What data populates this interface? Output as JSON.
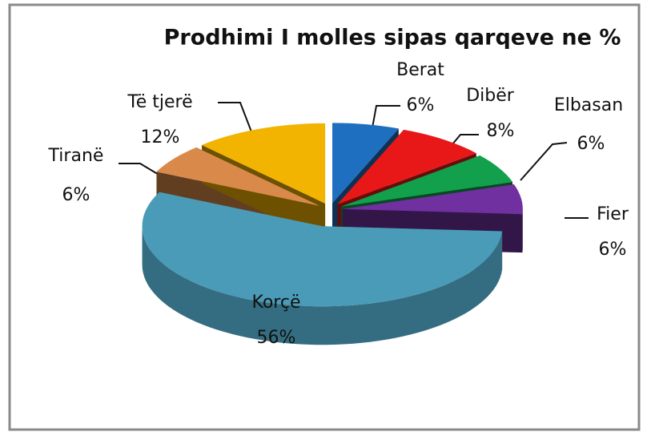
{
  "chart_data": {
    "type": "pie",
    "title": "Prodhimi I molles sipas qarqeve ne %",
    "categories": [
      "Berat",
      "Dibër",
      "Elbasan",
      "Fier",
      "Korçë",
      "Tiranë",
      "Të tjerë"
    ],
    "values": [
      6,
      8,
      6,
      6,
      56,
      6,
      12
    ],
    "value_labels": [
      "6%",
      "8%",
      "6%",
      "6%",
      "56%",
      "6%",
      "12%"
    ],
    "colors": [
      "#1f6fc0",
      "#e81818",
      "#12a04c",
      "#7030a0",
      "#4a9bb8",
      "#d98a4a",
      "#f2b400"
    ]
  }
}
